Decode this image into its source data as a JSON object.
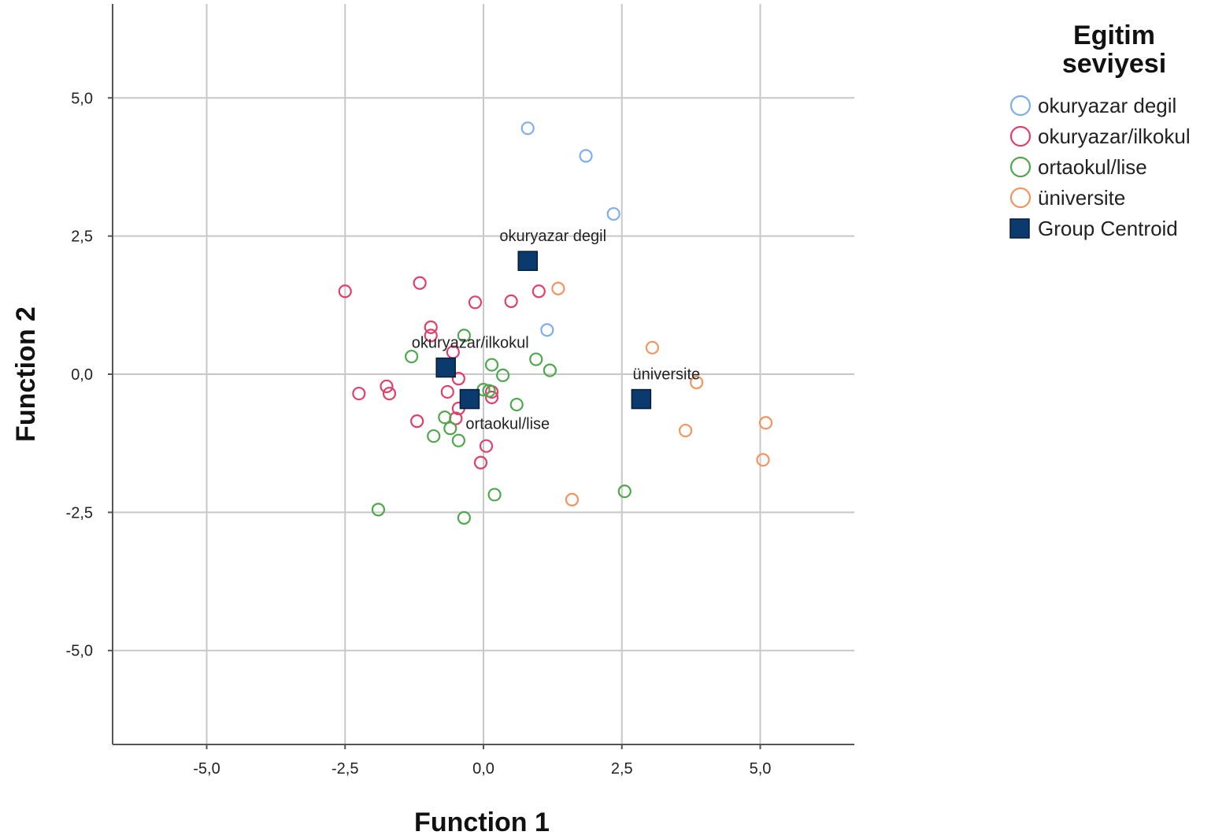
{
  "chart_data": {
    "type": "scatter",
    "title": "",
    "xlabel": "Function 1",
    "ylabel": "Function 2",
    "xlim": [
      -6.7,
      6.7
    ],
    "ylim": [
      -6.7,
      6.7
    ],
    "x_ticks": [
      {
        "value": -5.0,
        "label": "-5,0"
      },
      {
        "value": -2.5,
        "label": "-2,5"
      },
      {
        "value": 0.0,
        "label": "0,0"
      },
      {
        "value": 2.5,
        "label": "2,5"
      },
      {
        "value": 5.0,
        "label": "5,0"
      }
    ],
    "y_ticks": [
      {
        "value": 5.0,
        "label": "5,0"
      },
      {
        "value": 2.5,
        "label": "2,5"
      },
      {
        "value": 0.0,
        "label": "0,0"
      },
      {
        "value": -2.5,
        "label": "-2,5"
      },
      {
        "value": -5.0,
        "label": "-5,0"
      }
    ],
    "grid": true,
    "legend": {
      "title_lines": [
        "Egitim",
        "seviyesi"
      ],
      "placement": "top-right outside"
    },
    "series": [
      {
        "name": "okuryazar degil",
        "color": "#7eaef0",
        "marker": "open-circle",
        "points": [
          [
            0.8,
            4.45
          ],
          [
            1.85,
            3.95
          ],
          [
            2.35,
            2.9
          ],
          [
            1.15,
            0.8
          ]
        ]
      },
      {
        "name": "okuryazar/ilkokul",
        "color": "#e0406a",
        "marker": "open-circle",
        "points": [
          [
            -2.5,
            1.5
          ],
          [
            -1.15,
            1.65
          ],
          [
            -0.15,
            1.3
          ],
          [
            0.5,
            1.32
          ],
          [
            1.0,
            1.5
          ],
          [
            -0.95,
            0.85
          ],
          [
            -0.95,
            0.7
          ],
          [
            -1.75,
            -0.22
          ],
          [
            -1.7,
            -0.35
          ],
          [
            -2.25,
            -0.35
          ],
          [
            -0.65,
            -0.32
          ],
          [
            -0.45,
            -0.08
          ],
          [
            -0.55,
            0.4
          ],
          [
            0.15,
            -0.32
          ],
          [
            0.15,
            -0.42
          ],
          [
            -0.45,
            -0.62
          ],
          [
            -0.5,
            -0.8
          ],
          [
            -1.2,
            -0.85
          ],
          [
            0.05,
            -1.3
          ],
          [
            -0.05,
            -1.6
          ]
        ]
      },
      {
        "name": "ortaokul/lise",
        "color": "#4fa84f",
        "marker": "open-circle",
        "points": [
          [
            -0.35,
            0.7
          ],
          [
            -1.3,
            0.32
          ],
          [
            0.15,
            0.17
          ],
          [
            0.35,
            -0.02
          ],
          [
            0.95,
            0.27
          ],
          [
            1.2,
            0.07
          ],
          [
            0.0,
            -0.28
          ],
          [
            0.1,
            -0.3
          ],
          [
            0.6,
            -0.55
          ],
          [
            -0.7,
            -0.78
          ],
          [
            -0.6,
            -0.98
          ],
          [
            -0.9,
            -1.12
          ],
          [
            -0.45,
            -1.2
          ],
          [
            -1.9,
            -2.45
          ],
          [
            -0.35,
            -2.6
          ],
          [
            0.2,
            -2.18
          ],
          [
            2.55,
            -2.12
          ]
        ]
      },
      {
        "name": "üniversite",
        "color": "#f29560",
        "marker": "open-circle",
        "points": [
          [
            1.35,
            1.55
          ],
          [
            3.05,
            0.48
          ],
          [
            3.85,
            -0.15
          ],
          [
            3.65,
            -1.02
          ],
          [
            5.1,
            -0.88
          ],
          [
            5.05,
            -1.55
          ],
          [
            1.6,
            -2.27
          ]
        ]
      },
      {
        "name": "Group Centroid",
        "color": "#0b3a6e",
        "marker": "filled-square",
        "points": [
          {
            "x": 0.8,
            "y": 2.05,
            "label": "okuryazar degil"
          },
          {
            "x": -0.68,
            "y": 0.12,
            "label": "okuryazar/ilkokul"
          },
          {
            "x": -0.25,
            "y": -0.45,
            "label": "ortaokul/lise"
          },
          {
            "x": 2.85,
            "y": -0.45,
            "label": "üniversite"
          }
        ]
      }
    ]
  }
}
